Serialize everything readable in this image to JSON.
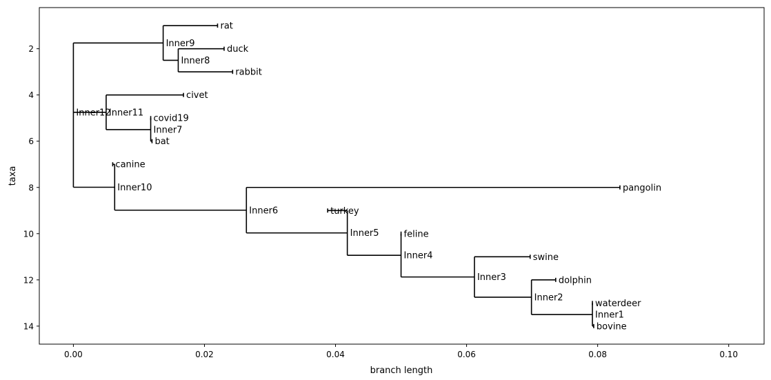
{
  "chart_data": {
    "type": "phylogenetic-tree",
    "xlabel": "branch length",
    "ylabel": "taxa",
    "xlim": [
      -0.0052,
      0.1054
    ],
    "ylim": [
      14.78,
      0.22
    ],
    "x_ticks": [
      0.0,
      0.02,
      0.04,
      0.06,
      0.08,
      0.1
    ],
    "x_tick_labels": [
      "0.00",
      "0.02",
      "0.04",
      "0.06",
      "0.08",
      "0.10"
    ],
    "y_ticks": [
      2,
      4,
      6,
      8,
      10,
      12,
      14
    ],
    "y_tick_labels": [
      "2",
      "4",
      "6",
      "8",
      "10",
      "12",
      "14"
    ],
    "grid": false,
    "line_color": "#000000",
    "nodes": [
      {
        "id": "rat",
        "label": "rat",
        "x": 0.022,
        "y": 1
      },
      {
        "id": "duck",
        "label": "duck",
        "x": 0.023,
        "y": 2
      },
      {
        "id": "rabbit",
        "label": "rabbit",
        "x": 0.0243,
        "y": 3
      },
      {
        "id": "civet",
        "label": "civet",
        "x": 0.0168,
        "y": 4
      },
      {
        "id": "covid19",
        "label": "covid19",
        "x": 0.0118,
        "y": 5
      },
      {
        "id": "bat",
        "label": "bat",
        "x": 0.012,
        "y": 6
      },
      {
        "id": "canine",
        "label": "canine",
        "x": 0.006,
        "y": 7
      },
      {
        "id": "pangolin",
        "label": "pangolin",
        "x": 0.0834,
        "y": 8
      },
      {
        "id": "turkey",
        "label": "turkey",
        "x": 0.0388,
        "y": 9
      },
      {
        "id": "feline",
        "label": "feline",
        "x": 0.05,
        "y": 10
      },
      {
        "id": "swine",
        "label": "swine",
        "x": 0.0697,
        "y": 11
      },
      {
        "id": "dolphin",
        "label": "dolphin",
        "x": 0.0736,
        "y": 12
      },
      {
        "id": "waterdeer",
        "label": "waterdeer",
        "x": 0.0792,
        "y": 13
      },
      {
        "id": "bovine",
        "label": "bovine",
        "x": 0.0794,
        "y": 14
      },
      {
        "id": "Inner1",
        "label": "Inner1",
        "x": 0.0792,
        "y": 13.5,
        "parent": "Inner2",
        "children": [
          "waterdeer",
          "bovine"
        ]
      },
      {
        "id": "Inner2",
        "label": "Inner2",
        "x": 0.0699,
        "y": 12.75,
        "parent": "Inner3",
        "children": [
          "dolphin",
          "Inner1"
        ]
      },
      {
        "id": "Inner3",
        "label": "Inner3",
        "x": 0.0612,
        "y": 11.875,
        "parent": "Inner4",
        "children": [
          "swine",
          "Inner2"
        ]
      },
      {
        "id": "Inner4",
        "label": "Inner4",
        "x": 0.05,
        "y": 10.9375,
        "parent": "Inner5",
        "children": [
          "feline",
          "Inner3"
        ]
      },
      {
        "id": "Inner5",
        "label": "Inner5",
        "x": 0.0418,
        "y": 9.96875,
        "parent": "Inner6",
        "children": [
          "turkey",
          "Inner4"
        ]
      },
      {
        "id": "Inner6",
        "label": "Inner6",
        "x": 0.0264,
        "y": 8.984375,
        "parent": "Inner10",
        "children": [
          "pangolin",
          "Inner5"
        ]
      },
      {
        "id": "Inner7",
        "label": "Inner7",
        "x": 0.0118,
        "y": 5.5,
        "parent": "Inner11",
        "children": [
          "covid19",
          "bat"
        ]
      },
      {
        "id": "Inner8",
        "label": "Inner8",
        "x": 0.016,
        "y": 2.5,
        "parent": "Inner9",
        "children": [
          "duck",
          "rabbit"
        ]
      },
      {
        "id": "Inner9",
        "label": "Inner9",
        "x": 0.0137,
        "y": 1.75,
        "parent": "Inner12",
        "children": [
          "rat",
          "Inner8"
        ]
      },
      {
        "id": "Inner10",
        "label": "Inner10",
        "x": 0.0063,
        "y": 7.9921875,
        "parent": "Inner12",
        "children": [
          "canine",
          "Inner6"
        ]
      },
      {
        "id": "Inner11",
        "label": "Inner11",
        "x": 0.005,
        "y": 4.75,
        "parent": "Inner12",
        "children": [
          "civet",
          "Inner7"
        ]
      },
      {
        "id": "Inner12",
        "label": "Inner12",
        "x": 0.0,
        "y": 4.75,
        "children": [
          "Inner9",
          "Inner11",
          "Inner10"
        ]
      }
    ]
  }
}
